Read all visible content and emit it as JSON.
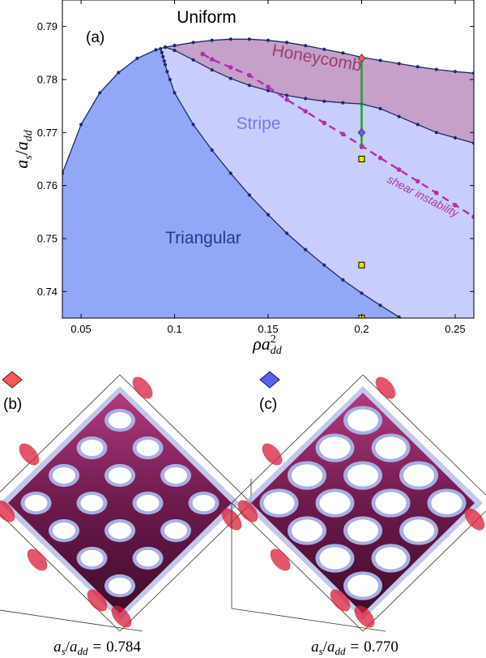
{
  "chart_data": [
    {
      "type": "line",
      "panel_label": "(a)",
      "xlabel": {
        "base": "ρa",
        "sup": "2",
        "sub": "dd"
      },
      "ylabel": {
        "num": "a",
        "num_sub": "s",
        "den": "a",
        "den_sub": "dd"
      },
      "xlim": [
        0.04,
        0.26
      ],
      "ylim": [
        0.735,
        0.795
      ],
      "x_ticks": [
        0.05,
        0.1,
        0.15,
        0.2,
        0.25
      ],
      "x_tick_labels": [
        "0.05",
        "0.1",
        "0.15",
        "0.2",
        "0.25"
      ],
      "y_ticks": [
        0.74,
        0.75,
        0.76,
        0.77,
        0.78,
        0.79
      ],
      "y_tick_labels": [
        "0.74",
        "0.75",
        "0.76",
        "0.77",
        "0.78",
        "0.79"
      ],
      "grid": false,
      "regions": [
        {
          "label": "Uniform",
          "color": "#ffffff",
          "text_color": "#000000"
        },
        {
          "label": "Honeycomb",
          "color": "#c5a0c9",
          "text_color": "#9a3f6e"
        },
        {
          "label": "Stripe",
          "color": "#c9cdfb",
          "text_color": "#6f7af3"
        },
        {
          "label": "Triangular",
          "color": "#93a7f7",
          "text_color": "#2b3592"
        }
      ],
      "series": [
        {
          "role": "uniform-triangular-boundary",
          "color": "#1e2a6a",
          "points": [
            [
              0.04,
              0.7623
            ],
            [
              0.05,
              0.7715
            ],
            [
              0.06,
              0.7775
            ],
            [
              0.07,
              0.7813
            ],
            [
              0.08,
              0.784
            ],
            [
              0.09,
              0.7856
            ],
            [
              0.095,
              0.7861
            ],
            [
              0.1,
              0.7864
            ]
          ]
        },
        {
          "role": "triangular-stripe-boundary",
          "color": "#1e2a6a",
          "points": [
            [
              0.0925,
              0.7858
            ],
            [
              0.0932,
              0.7851
            ],
            [
              0.0938,
              0.7843
            ],
            [
              0.0945,
              0.7835
            ],
            [
              0.095,
              0.7828
            ],
            [
              0.096,
              0.7815
            ],
            [
              0.0975,
              0.78
            ],
            [
              0.1,
              0.7775
            ],
            [
              0.11,
              0.7715
            ],
            [
              0.12,
              0.7667
            ],
            [
              0.13,
              0.7623
            ],
            [
              0.14,
              0.7582
            ],
            [
              0.15,
              0.7545
            ],
            [
              0.16,
              0.751
            ],
            [
              0.17,
              0.7479
            ],
            [
              0.18,
              0.745
            ],
            [
              0.19,
              0.7422
            ],
            [
              0.2,
              0.7397
            ],
            [
              0.21,
              0.7374
            ],
            [
              0.22,
              0.7352
            ],
            [
              0.228,
              0.7335
            ]
          ]
        },
        {
          "role": "uniform-honeycomb-boundary",
          "color": "#1e2a6a",
          "points": [
            [
              0.1,
              0.7864
            ],
            [
              0.11,
              0.787
            ],
            [
              0.12,
              0.7874
            ],
            [
              0.13,
              0.7876
            ],
            [
              0.14,
              0.7876
            ],
            [
              0.15,
              0.7874
            ],
            [
              0.16,
              0.787
            ],
            [
              0.17,
              0.7864
            ],
            [
              0.18,
              0.7857
            ],
            [
              0.19,
              0.785
            ],
            [
              0.2,
              0.7842
            ],
            [
              0.21,
              0.7836
            ],
            [
              0.22,
              0.783
            ],
            [
              0.23,
              0.7824
            ],
            [
              0.24,
              0.7819
            ],
            [
              0.25,
              0.7815
            ],
            [
              0.26,
              0.7812
            ]
          ]
        },
        {
          "role": "honeycomb-stripe-boundary",
          "color": "#1e2a6a",
          "points": [
            [
              0.095,
              0.7861
            ],
            [
              0.1,
              0.7855
            ],
            [
              0.11,
              0.7837
            ],
            [
              0.12,
              0.7818
            ],
            [
              0.13,
              0.7802
            ],
            [
              0.14,
              0.7789
            ],
            [
              0.15,
              0.7779
            ],
            [
              0.16,
              0.777
            ],
            [
              0.17,
              0.7764
            ],
            [
              0.18,
              0.7759
            ],
            [
              0.19,
              0.7756
            ],
            [
              0.2,
              0.7754
            ],
            [
              0.21,
              0.7745
            ],
            [
              0.22,
              0.773
            ],
            [
              0.23,
              0.7715
            ],
            [
              0.24,
              0.77
            ],
            [
              0.25,
              0.769
            ],
            [
              0.26,
              0.768
            ]
          ]
        },
        {
          "role": "shear-instability",
          "name": "shear instability",
          "color": "#b02fb0",
          "dashed": true,
          "points": [
            [
              0.115,
              0.7848
            ],
            [
              0.12,
              0.7838
            ],
            [
              0.13,
              0.7823
            ],
            [
              0.14,
              0.7808
            ],
            [
              0.15,
              0.7786
            ],
            [
              0.16,
              0.7762
            ],
            [
              0.17,
              0.774
            ],
            [
              0.18,
              0.7718
            ],
            [
              0.19,
              0.7697
            ],
            [
              0.2,
              0.7675
            ],
            [
              0.21,
              0.7652
            ],
            [
              0.22,
              0.763
            ],
            [
              0.23,
              0.7608
            ],
            [
              0.24,
              0.7586
            ],
            [
              0.25,
              0.7563
            ],
            [
              0.26,
              0.7541
            ]
          ]
        }
      ],
      "vertical_segment": {
        "x": 0.2,
        "y": [
          0.7672,
          0.7842
        ],
        "color": "#1aa51a"
      },
      "diamond_markers": [
        {
          "x": 0.2,
          "y": 0.784,
          "color": "#f45a5a"
        },
        {
          "x": 0.2,
          "y": 0.77,
          "color": "#5a5ff0"
        }
      ],
      "square_markers": [
        {
          "x": 0.2,
          "y": 0.765,
          "color": "#f2e200"
        },
        {
          "x": 0.2,
          "y": 0.745,
          "color": "#f2e200"
        },
        {
          "x": 0.2,
          "y": 0.735,
          "color": "#f2e200"
        }
      ]
    }
  ],
  "panels": [
    {
      "label": "(b)",
      "marker_color": "#f45a5a",
      "caption": {
        "lhs_num": "a",
        "lhs_num_sub": "s",
        "lhs_den": "a",
        "lhs_den_sub": "dd",
        "eq": "=",
        "value": "0.784"
      }
    },
    {
      "label": "(c)",
      "marker_color": "#5a5ff0",
      "caption": {
        "lhs_num": "a",
        "lhs_num_sub": "s",
        "lhs_den": "a",
        "lhs_den_sub": "dd",
        "eq": "=",
        "value": "0.770"
      }
    }
  ],
  "colors": {
    "tube_core": "#7a1f57",
    "tube_halo": "#a9afe3",
    "tube_end": "#d81e3a",
    "boundary": "#1e2a6a"
  }
}
